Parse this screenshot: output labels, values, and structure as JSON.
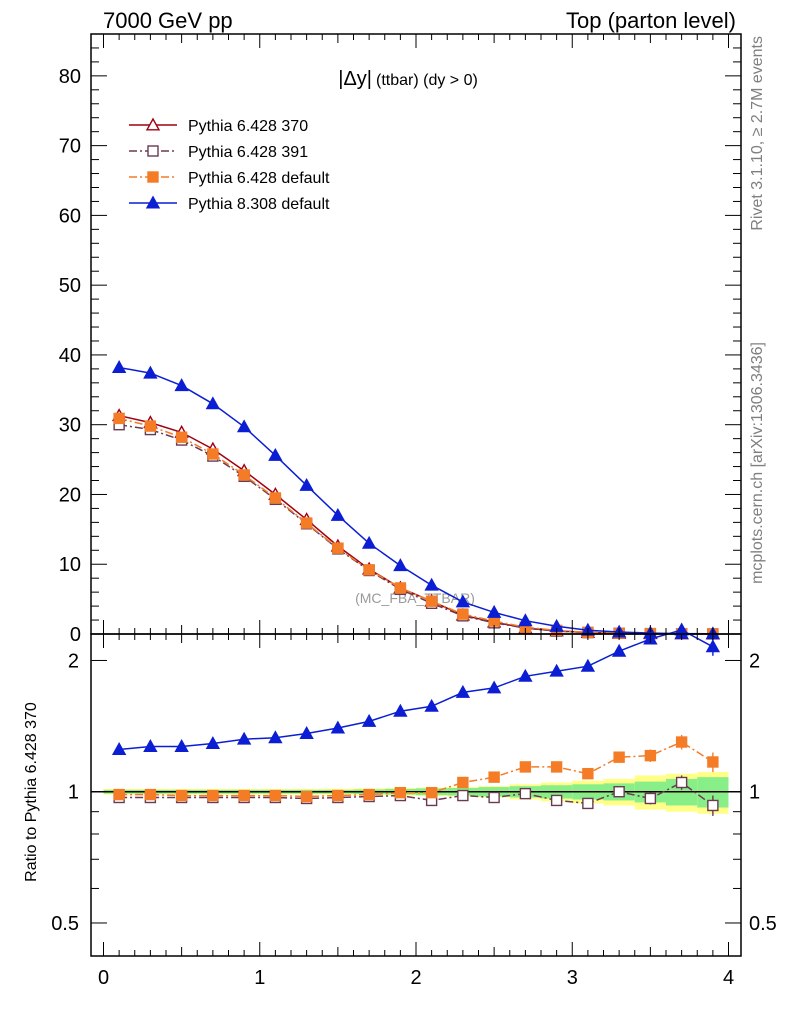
{
  "header": {
    "left": "7000 GeV pp",
    "right": "Top (parton level)"
  },
  "side_labels": {
    "rivet": "Rivet 3.1.10, ≥ 2.7M events",
    "mcplots": "mcplots.cern.ch [arXiv:1306.3436]"
  },
  "watermark": "(MC_FBA_TTBAR)",
  "chart_data": [
    {
      "type": "line",
      "title_main": "|Δy|",
      "title_sub": "(ttbar) (dy > 0)",
      "xlabel": "",
      "ylabel": "",
      "xlim": [
        -0.08,
        4.08
      ],
      "ylim": [
        0,
        86
      ],
      "yticks": [
        0,
        10,
        20,
        30,
        40,
        50,
        60,
        70,
        80
      ],
      "legend_position": "top-left",
      "x": [
        0.1,
        0.3,
        0.5,
        0.7,
        0.9,
        1.1,
        1.3,
        1.5,
        1.7,
        1.9,
        2.1,
        2.3,
        2.5,
        2.7,
        2.9,
        3.1,
        3.3,
        3.5,
        3.7,
        3.9
      ],
      "series": [
        {
          "name": "Pythia 6.428 370",
          "color": "#a00012",
          "marker": "triangle-open",
          "dash": "solid",
          "values": [
            31.3,
            30.3,
            28.9,
            26.5,
            23.4,
            20.0,
            16.4,
            12.6,
            9.3,
            6.6,
            4.7,
            2.7,
            1.7,
            0.85,
            0.45,
            0.22,
            0.1,
            0.05,
            0.02,
            0.01
          ]
        },
        {
          "name": "Pythia 6.428 391",
          "color": "#6a3a52",
          "marker": "square-open",
          "dash": "dashdot",
          "values": [
            30.0,
            29.3,
            27.8,
            25.5,
            22.6,
            19.3,
            15.8,
            12.2,
            9.1,
            6.4,
            4.4,
            2.6,
            1.6,
            0.84,
            0.42,
            0.2,
            0.1,
            0.05,
            0.02,
            0.01
          ]
        },
        {
          "name": "Pythia 6.428 default",
          "color": "#f47c26",
          "marker": "square-filled",
          "dash": "dashdot",
          "values": [
            30.9,
            29.8,
            28.2,
            25.8,
            22.8,
            19.5,
            15.9,
            12.3,
            9.2,
            6.6,
            4.7,
            2.85,
            1.85,
            0.98,
            0.52,
            0.24,
            0.12,
            0.06,
            0.026,
            0.012
          ]
        },
        {
          "name": "Pythia 8.308 default",
          "color": "#0b1ed4",
          "marker": "triangle-filled",
          "dash": "solid",
          "values": [
            38.2,
            37.4,
            35.6,
            33.0,
            29.7,
            25.6,
            21.3,
            17.0,
            13.0,
            9.8,
            7.0,
            4.6,
            3.1,
            1.9,
            1.1,
            0.55,
            0.28,
            0.13,
            0.06,
            0.03
          ]
        }
      ]
    },
    {
      "type": "line",
      "ylabel": "Ratio to Pythia 6.428 370",
      "xlim": [
        -0.08,
        4.08
      ],
      "ylim": [
        0.42,
        2.3
      ],
      "yscale": "log",
      "yticks": [
        0.5,
        1,
        2
      ],
      "xticks": [
        0,
        1,
        2,
        3,
        4
      ],
      "x": [
        0.1,
        0.3,
        0.5,
        0.7,
        0.9,
        1.1,
        1.3,
        1.5,
        1.7,
        1.9,
        2.1,
        2.3,
        2.5,
        2.7,
        2.9,
        3.1,
        3.3,
        3.5,
        3.7,
        3.9
      ],
      "reference_band": {
        "green_half_width": [
          0.01,
          0.01,
          0.01,
          0.01,
          0.01,
          0.01,
          0.01,
          0.01,
          0.012,
          0.015,
          0.018,
          0.02,
          0.025,
          0.03,
          0.035,
          0.04,
          0.045,
          0.055,
          0.07,
          0.08
        ],
        "yellow_half_width": [
          0.015,
          0.015,
          0.015,
          0.015,
          0.015,
          0.015,
          0.015,
          0.016,
          0.018,
          0.02,
          0.022,
          0.025,
          0.03,
          0.04,
          0.05,
          0.06,
          0.07,
          0.09,
          0.1,
          0.11
        ]
      },
      "series": [
        {
          "name": "Pythia 6.428 391",
          "values": [
            0.97,
            0.97,
            0.97,
            0.97,
            0.97,
            0.97,
            0.965,
            0.97,
            0.975,
            0.98,
            0.955,
            0.98,
            0.97,
            0.99,
            0.955,
            0.94,
            1.0,
            0.965,
            1.05,
            0.93
          ],
          "errors": [
            0,
            0,
            0,
            0,
            0,
            0,
            0,
            0,
            0,
            0,
            0,
            0,
            0,
            0,
            0,
            0,
            0.02,
            0.03,
            0.04,
            0.05
          ]
        },
        {
          "name": "Pythia 6.428 default",
          "values": [
            0.985,
            0.985,
            0.98,
            0.98,
            0.98,
            0.98,
            0.975,
            0.98,
            0.985,
            0.995,
            0.995,
            1.05,
            1.08,
            1.14,
            1.14,
            1.1,
            1.2,
            1.21,
            1.3,
            1.17
          ],
          "errors": [
            0,
            0,
            0,
            0,
            0,
            0,
            0,
            0,
            0,
            0,
            0,
            0,
            0,
            0,
            0,
            0.01,
            0.02,
            0.04,
            0.05,
            0.06
          ]
        },
        {
          "name": "Pythia 8.308 default",
          "values": [
            1.25,
            1.27,
            1.27,
            1.29,
            1.32,
            1.33,
            1.36,
            1.4,
            1.45,
            1.53,
            1.57,
            1.69,
            1.73,
            1.84,
            1.89,
            1.94,
            2.1,
            2.24,
            2.35,
            2.15
          ],
          "errors": [
            0,
            0,
            0,
            0,
            0,
            0,
            0,
            0,
            0,
            0,
            0,
            0,
            0,
            0,
            0,
            0,
            0.04,
            0.06,
            0.08,
            0.1
          ]
        }
      ]
    }
  ]
}
